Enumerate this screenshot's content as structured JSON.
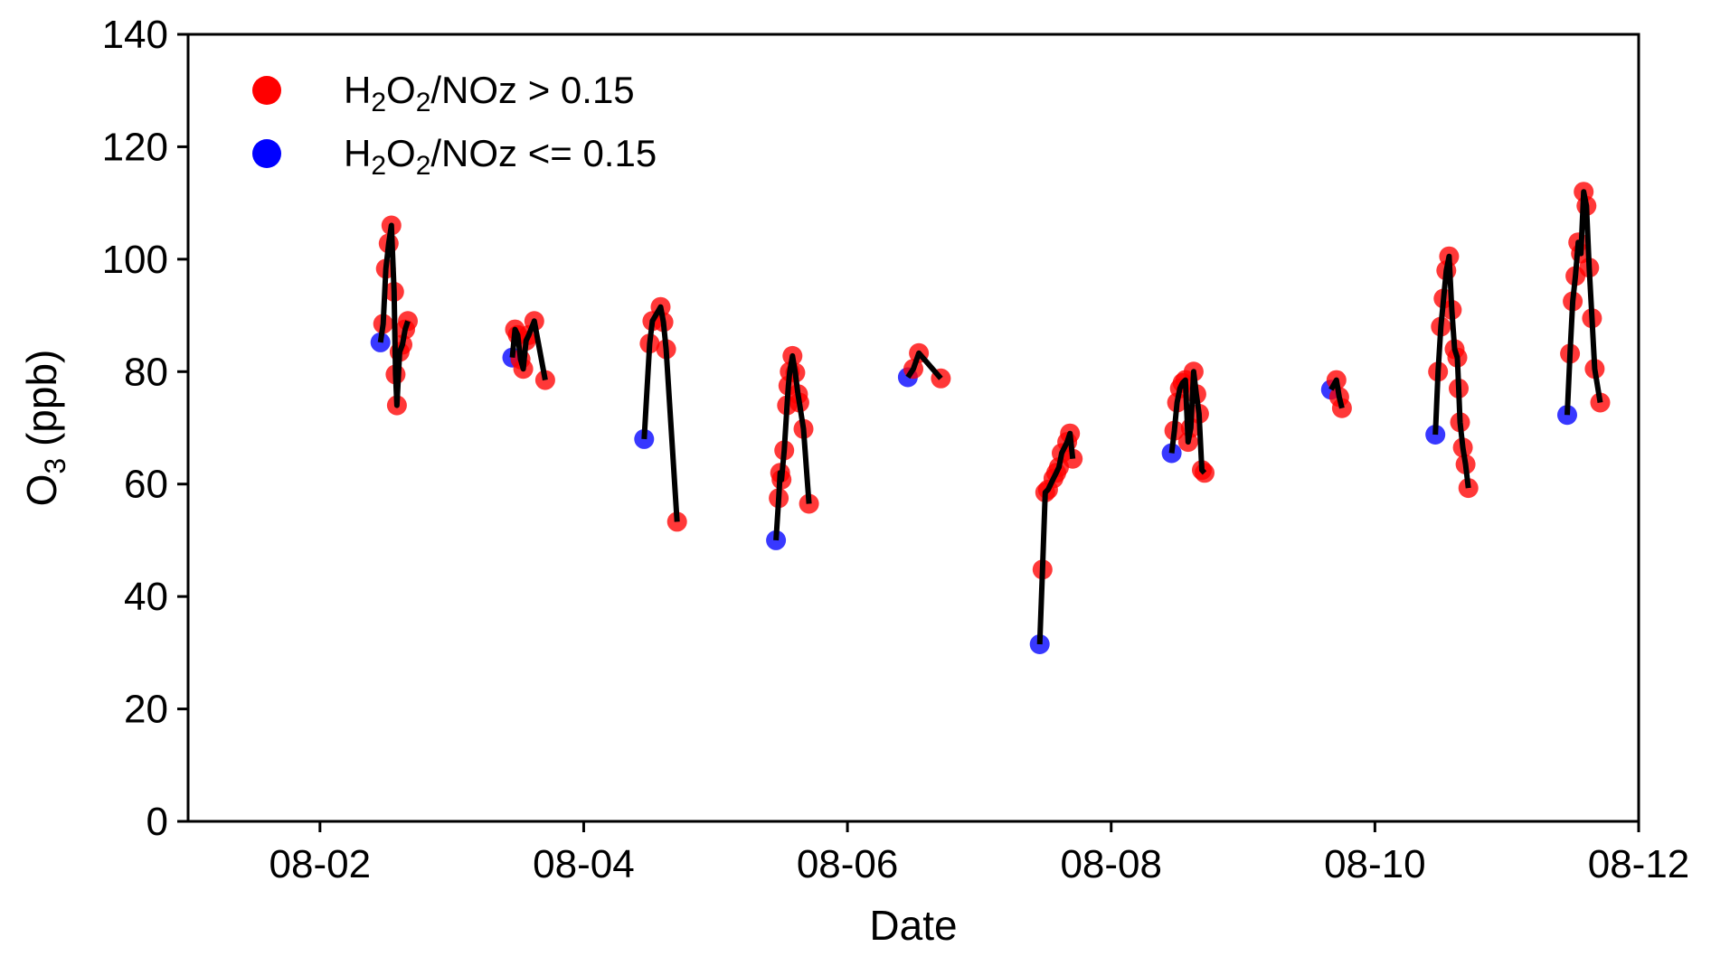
{
  "chart_data": {
    "type": "scatter",
    "title": "",
    "xlabel": "Date",
    "ylabel_main": "O",
    "ylabel_sub": "3",
    "ylabel_unit": " (ppb)",
    "x_range": [
      "08-01T00:00",
      "08-12T00:00"
    ],
    "ylim": [
      0,
      140
    ],
    "x_ticks": [
      {
        "value": "08-02T00:00",
        "label": "08-02"
      },
      {
        "value": "08-04T00:00",
        "label": "08-04"
      },
      {
        "value": "08-06T00:00",
        "label": "08-06"
      },
      {
        "value": "08-08T00:00",
        "label": "08-08"
      },
      {
        "value": "08-10T00:00",
        "label": "08-10"
      },
      {
        "value": "08-12T00:00",
        "label": "08-12"
      }
    ],
    "y_ticks": [
      0,
      20,
      40,
      60,
      80,
      100,
      120,
      140
    ],
    "grid": false,
    "legend_position": "top-left",
    "series": [
      {
        "name_main": "H",
        "name_sub1": "2",
        "name_mid": "O",
        "name_sub2": "2",
        "name_tail": "/NOz > 0.15",
        "color": "#ff0000"
      },
      {
        "name_main": "H",
        "name_sub1": "2",
        "name_mid": "O",
        "name_sub2": "2",
        "name_tail": "/NOz <= 0.15",
        "color": "#0000ff"
      }
    ],
    "line_color": "#000000",
    "days": [
      {
        "points": [
          {
            "x": "08-02T11:00",
            "y": 85.2,
            "s": 1
          },
          {
            "x": "08-02T11:30",
            "y": 88.5,
            "s": 0
          },
          {
            "x": "08-02T12:00",
            "y": 98.3,
            "s": 0
          },
          {
            "x": "08-02T12:30",
            "y": 102.8,
            "s": 0
          },
          {
            "x": "08-02T13:00",
            "y": 106.0,
            "s": 0
          },
          {
            "x": "08-02T13:30",
            "y": 94.2,
            "s": 0
          },
          {
            "x": "08-02T13:45",
            "y": 79.5,
            "s": 0
          },
          {
            "x": "08-02T14:00",
            "y": 74.0,
            "s": 0
          },
          {
            "x": "08-02T14:30",
            "y": 83.5,
            "s": 0
          },
          {
            "x": "08-02T15:00",
            "y": 84.8,
            "s": 0
          },
          {
            "x": "08-02T15:30",
            "y": 87.5,
            "s": 0
          },
          {
            "x": "08-02T16:00",
            "y": 89.0,
            "s": 0
          }
        ]
      },
      {
        "points": [
          {
            "x": "08-03T11:00",
            "y": 82.5,
            "s": 1
          },
          {
            "x": "08-03T11:30",
            "y": 87.5,
            "s": 0
          },
          {
            "x": "08-03T12:00",
            "y": 86.5,
            "s": 0
          },
          {
            "x": "08-03T12:30",
            "y": 82.2,
            "s": 0
          },
          {
            "x": "08-03T13:00",
            "y": 80.5,
            "s": 0
          },
          {
            "x": "08-03T13:30",
            "y": 85.5,
            "s": 0
          },
          {
            "x": "08-03T14:00",
            "y": 86.5,
            "s": 0
          },
          {
            "x": "08-03T15:00",
            "y": 89.0,
            "s": 0
          },
          {
            "x": "08-03T17:00",
            "y": 78.5,
            "s": 0
          }
        ]
      },
      {
        "points": [
          {
            "x": "08-04T11:00",
            "y": 68.0,
            "s": 1
          },
          {
            "x": "08-04T12:00",
            "y": 85.0,
            "s": 0
          },
          {
            "x": "08-04T12:30",
            "y": 89.0,
            "s": 0
          },
          {
            "x": "08-04T14:00",
            "y": 91.5,
            "s": 0
          },
          {
            "x": "08-04T14:30",
            "y": 88.8,
            "s": 0
          },
          {
            "x": "08-04T15:00",
            "y": 84.0,
            "s": 0
          },
          {
            "x": "08-04T17:00",
            "y": 53.3,
            "s": 0
          }
        ]
      },
      {
        "points": [
          {
            "x": "08-05T11:00",
            "y": 50.0,
            "s": 1
          },
          {
            "x": "08-05T11:30",
            "y": 57.5,
            "s": 0
          },
          {
            "x": "08-05T11:45",
            "y": 62.0,
            "s": 0
          },
          {
            "x": "08-05T12:00",
            "y": 60.8,
            "s": 0
          },
          {
            "x": "08-05T12:30",
            "y": 66.0,
            "s": 0
          },
          {
            "x": "08-05T13:00",
            "y": 74.0,
            "s": 0
          },
          {
            "x": "08-05T13:15",
            "y": 77.5,
            "s": 0
          },
          {
            "x": "08-05T13:30",
            "y": 80.0,
            "s": 0
          },
          {
            "x": "08-05T14:00",
            "y": 82.8,
            "s": 0
          },
          {
            "x": "08-05T14:30",
            "y": 79.8,
            "s": 0
          },
          {
            "x": "08-05T15:00",
            "y": 76.0,
            "s": 0
          },
          {
            "x": "08-05T15:15",
            "y": 74.5,
            "s": 0
          },
          {
            "x": "08-05T16:00",
            "y": 69.8,
            "s": 0
          },
          {
            "x": "08-05T17:00",
            "y": 56.5,
            "s": 0
          }
        ]
      },
      {
        "points": [
          {
            "x": "08-06T11:00",
            "y": 79.0,
            "s": 1
          },
          {
            "x": "08-06T12:00",
            "y": 80.5,
            "s": 0
          },
          {
            "x": "08-06T13:00",
            "y": 83.3,
            "s": 0
          },
          {
            "x": "08-06T17:00",
            "y": 78.8,
            "s": 0
          }
        ]
      },
      {
        "points": [
          {
            "x": "08-07T11:00",
            "y": 31.5,
            "s": 1
          },
          {
            "x": "08-07T11:30",
            "y": 44.8,
            "s": 0
          },
          {
            "x": "08-07T12:00",
            "y": 58.5,
            "s": 0
          },
          {
            "x": "08-07T12:30",
            "y": 59.0,
            "s": 0
          },
          {
            "x": "08-07T13:30",
            "y": 61.0,
            "s": 0
          },
          {
            "x": "08-07T14:00",
            "y": 62.0,
            "s": 0
          },
          {
            "x": "08-07T14:30",
            "y": 63.0,
            "s": 0
          },
          {
            "x": "08-07T15:00",
            "y": 65.5,
            "s": 0
          },
          {
            "x": "08-07T16:00",
            "y": 67.5,
            "s": 0
          },
          {
            "x": "08-07T16:30",
            "y": 69.0,
            "s": 0
          },
          {
            "x": "08-07T17:00",
            "y": 64.5,
            "s": 0
          }
        ]
      },
      {
        "points": [
          {
            "x": "08-08T11:00",
            "y": 65.5,
            "s": 1
          },
          {
            "x": "08-08T11:30",
            "y": 69.5,
            "s": 0
          },
          {
            "x": "08-08T12:00",
            "y": 74.5,
            "s": 0
          },
          {
            "x": "08-08T12:30",
            "y": 77.0,
            "s": 0
          },
          {
            "x": "08-08T13:00",
            "y": 78.0,
            "s": 0
          },
          {
            "x": "08-08T13:30",
            "y": 78.5,
            "s": 0
          },
          {
            "x": "08-08T14:00",
            "y": 67.5,
            "s": 0
          },
          {
            "x": "08-08T14:30",
            "y": 70.0,
            "s": 0
          },
          {
            "x": "08-08T15:00",
            "y": 80.0,
            "s": 0
          },
          {
            "x": "08-08T15:30",
            "y": 76.0,
            "s": 0
          },
          {
            "x": "08-08T16:00",
            "y": 72.5,
            "s": 0
          },
          {
            "x": "08-08T16:30",
            "y": 62.5,
            "s": 0
          },
          {
            "x": "08-08T17:00",
            "y": 62.0,
            "s": 0
          }
        ]
      },
      {
        "points": [
          {
            "x": "08-09T16:00",
            "y": 76.8,
            "s": 1
          },
          {
            "x": "08-09T17:00",
            "y": 78.5,
            "s": 0
          },
          {
            "x": "08-09T17:30",
            "y": 75.5,
            "s": 0
          },
          {
            "x": "08-09T18:00",
            "y": 73.5,
            "s": 0
          }
        ]
      },
      {
        "points": [
          {
            "x": "08-10T11:00",
            "y": 68.8,
            "s": 1
          },
          {
            "x": "08-10T11:30",
            "y": 80.0,
            "s": 0
          },
          {
            "x": "08-10T12:00",
            "y": 88.0,
            "s": 0
          },
          {
            "x": "08-10T12:30",
            "y": 93.0,
            "s": 0
          },
          {
            "x": "08-10T13:00",
            "y": 98.0,
            "s": 0
          },
          {
            "x": "08-10T13:30",
            "y": 100.5,
            "s": 0
          },
          {
            "x": "08-10T14:00",
            "y": 91.0,
            "s": 0
          },
          {
            "x": "08-10T14:30",
            "y": 84.0,
            "s": 0
          },
          {
            "x": "08-10T15:00",
            "y": 82.5,
            "s": 0
          },
          {
            "x": "08-10T15:15",
            "y": 77.0,
            "s": 0
          },
          {
            "x": "08-10T15:30",
            "y": 71.0,
            "s": 0
          },
          {
            "x": "08-10T16:00",
            "y": 66.5,
            "s": 0
          },
          {
            "x": "08-10T16:30",
            "y": 63.5,
            "s": 0
          },
          {
            "x": "08-10T17:00",
            "y": 59.3,
            "s": 0
          }
        ]
      },
      {
        "points": [
          {
            "x": "08-11T11:00",
            "y": 72.3,
            "s": 1
          },
          {
            "x": "08-11T11:30",
            "y": 83.2,
            "s": 0
          },
          {
            "x": "08-11T12:00",
            "y": 92.5,
            "s": 0
          },
          {
            "x": "08-11T12:30",
            "y": 97.0,
            "s": 0
          },
          {
            "x": "08-11T13:00",
            "y": 103.0,
            "s": 0
          },
          {
            "x": "08-11T13:30",
            "y": 101.0,
            "s": 0
          },
          {
            "x": "08-11T14:00",
            "y": 112.0,
            "s": 0
          },
          {
            "x": "08-11T14:30",
            "y": 109.5,
            "s": 0
          },
          {
            "x": "08-11T15:00",
            "y": 98.5,
            "s": 0
          },
          {
            "x": "08-11T15:30",
            "y": 89.5,
            "s": 0
          },
          {
            "x": "08-11T16:00",
            "y": 80.5,
            "s": 0
          },
          {
            "x": "08-11T17:00",
            "y": 74.5,
            "s": 0
          }
        ]
      }
    ]
  }
}
